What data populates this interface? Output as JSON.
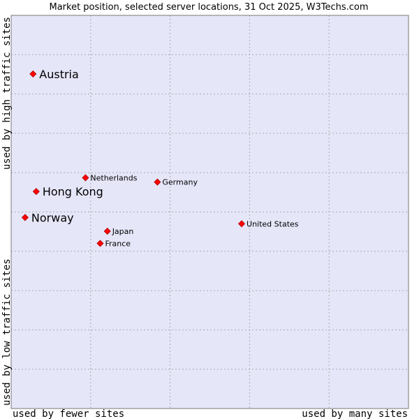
{
  "chart_data": {
    "type": "scatter",
    "title": "Market position, selected server locations, 31 Oct 2025, W3Techs.com",
    "xlabel_left": "used by fewer sites",
    "xlabel_right": "used by many sites",
    "ylabel_bottom": "used by low traffic sites",
    "ylabel_top": "used by high traffic sites",
    "xlim": [
      0,
      100
    ],
    "ylim": [
      0,
      100
    ],
    "grid": true,
    "colors": {
      "plot_bg": "#e6e6f9",
      "point": "#ff0000",
      "grid": "#aaaaaa"
    },
    "points": [
      {
        "label": "Austria",
        "x": 5.5,
        "y": 85.1,
        "emphasis": true
      },
      {
        "label": "Hong Kong",
        "x": 6.3,
        "y": 55.2,
        "emphasis": true
      },
      {
        "label": "Norway",
        "x": 3.5,
        "y": 48.6,
        "emphasis": true
      },
      {
        "label": "Netherlands",
        "x": 18.7,
        "y": 58.7,
        "emphasis": false
      },
      {
        "label": "Germany",
        "x": 36.8,
        "y": 57.6,
        "emphasis": false
      },
      {
        "label": "United States",
        "x": 58.0,
        "y": 47.0,
        "emphasis": false
      },
      {
        "label": "Japan",
        "x": 24.2,
        "y": 45.1,
        "emphasis": false
      },
      {
        "label": "France",
        "x": 22.4,
        "y": 42.0,
        "emphasis": false
      }
    ]
  }
}
